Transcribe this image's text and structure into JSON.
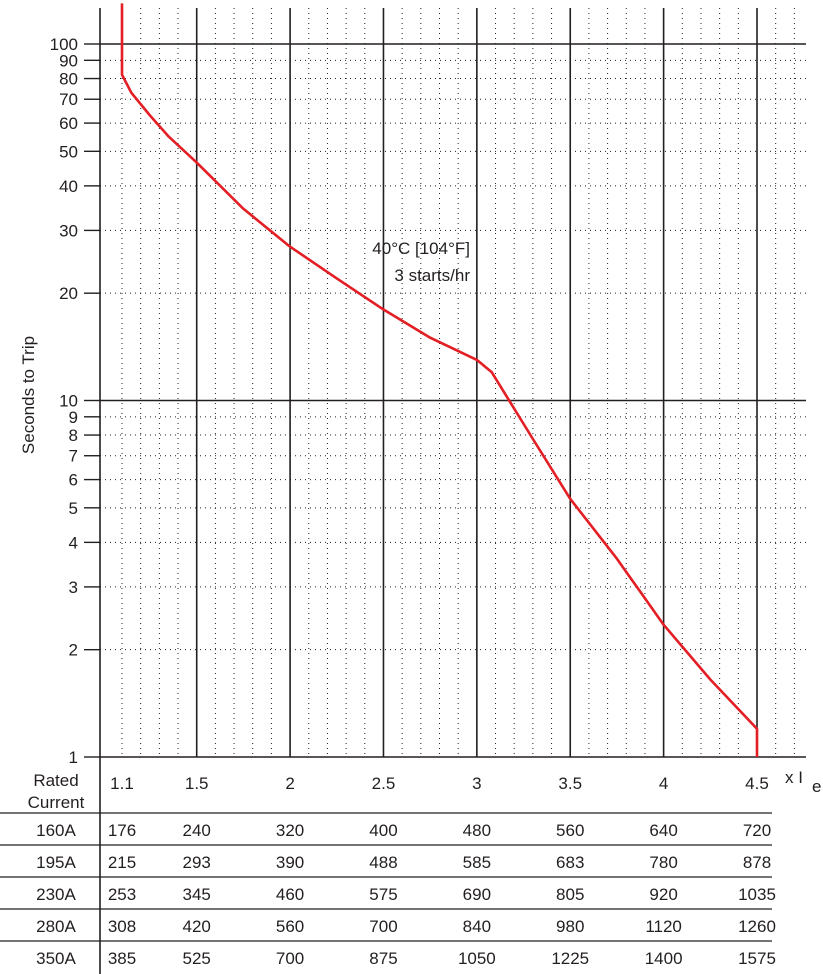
{
  "chart_data": {
    "type": "line",
    "title": "",
    "xlabel": "",
    "x_unit_label": "x I",
    "x_unit_subscript": "e",
    "ylabel": "Seconds to Trip",
    "y_scale": "log",
    "ylim": [
      1,
      130
    ],
    "xlim": [
      0.99,
      4.75
    ],
    "grid": true,
    "annotation": [
      "40°C [104°F]",
      "3 starts/hr"
    ],
    "y_tick_values": [
      1,
      2,
      3,
      4,
      5,
      6,
      7,
      8,
      9,
      10,
      20,
      30,
      40,
      50,
      60,
      70,
      80,
      90,
      100
    ],
    "y_tick_labels": [
      "1",
      "2",
      "3",
      "4",
      "5",
      "6",
      "7",
      "8",
      "9",
      "10",
      "20",
      "30",
      "40",
      "50",
      "60",
      "70",
      "80",
      "90",
      "100"
    ],
    "y_major_lines": [
      10,
      100
    ],
    "y_minor_lines": [
      2,
      3,
      4,
      5,
      6,
      7,
      8,
      9,
      20,
      30,
      40,
      50,
      60,
      70,
      80,
      90
    ],
    "x_tick_values": [
      1.1,
      1.5,
      2,
      2.5,
      3,
      3.5,
      4,
      4.5
    ],
    "x_tick_labels": [
      "1.1",
      "1.5",
      "2",
      "2.5",
      "3",
      "3.5",
      "4",
      "4.5"
    ],
    "x_major_lines": [
      1.5,
      2,
      2.5,
      3,
      3.5,
      4,
      4.5
    ],
    "series": [
      {
        "color": "#e31e24",
        "x": [
          1.1,
          1.1,
          1.15,
          1.25,
          1.35,
          1.5,
          1.75,
          2.0,
          2.25,
          2.5,
          2.75,
          3.0,
          3.08,
          3.3,
          3.5,
          3.75,
          4.0,
          4.25,
          4.5,
          4.5
        ],
        "y": [
          130,
          82,
          73,
          63,
          55,
          46.5,
          34.5,
          27,
          22,
          18,
          15,
          13,
          12,
          7.8,
          5.3,
          3.6,
          2.35,
          1.65,
          1.2,
          1
        ]
      }
    ]
  },
  "table": {
    "header_label_line1": "Rated",
    "header_label_line2": "Current",
    "rows": [
      {
        "rated": "160A",
        "values": [
          "176",
          "240",
          "320",
          "400",
          "480",
          "560",
          "640",
          "720"
        ]
      },
      {
        "rated": "195A",
        "values": [
          "215",
          "293",
          "390",
          "488",
          "585",
          "683",
          "780",
          "878"
        ]
      },
      {
        "rated": "230A",
        "values": [
          "253",
          "345",
          "460",
          "575",
          "690",
          "805",
          "920",
          "1035"
        ]
      },
      {
        "rated": "280A",
        "values": [
          "308",
          "420",
          "560",
          "700",
          "840",
          "980",
          "1120",
          "1260"
        ]
      },
      {
        "rated": "350A",
        "values": [
          "385",
          "525",
          "700",
          "875",
          "1050",
          "1225",
          "1400",
          "1575"
        ]
      }
    ]
  }
}
